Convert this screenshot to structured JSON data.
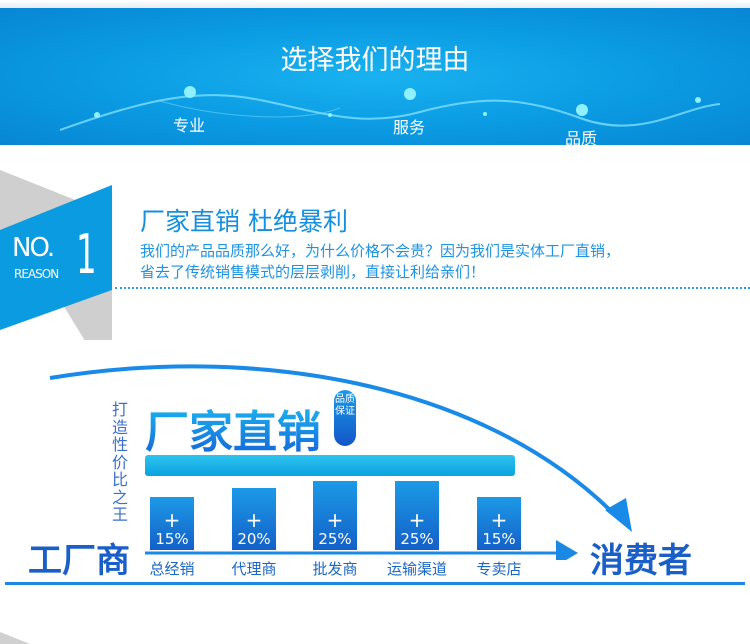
{
  "banner": {
    "title": "选择我们的理由",
    "features": [
      "专业",
      "服务",
      "品质"
    ]
  },
  "reason": {
    "no_label": "NO.",
    "number": "1",
    "reason_label": "REASON",
    "title": "厂家直销 杜绝暴利",
    "lines": [
      "我们的产品品质那么好，为什么价格不会贵？因为我们是实体工厂直销，",
      "省去了传统销售模式的层层剥削，直接让利给亲们！"
    ]
  },
  "diagram": {
    "headline": "厂家直销",
    "badge": "品质保证",
    "slogan": "打造性价比之王",
    "factory": "工厂商",
    "consumer": "消费者",
    "plus": "+",
    "steps": [
      {
        "label": "总经销",
        "markup": "15%"
      },
      {
        "label": "代理商",
        "markup": "20%"
      },
      {
        "label": "批发商",
        "markup": "25%"
      },
      {
        "label": "运输渠道",
        "markup": "25%"
      },
      {
        "label": "专卖店",
        "markup": "15%"
      }
    ]
  },
  "colors": {
    "brand_blue": "#0a9ae2",
    "dark_blue": "#1a5ec8"
  }
}
